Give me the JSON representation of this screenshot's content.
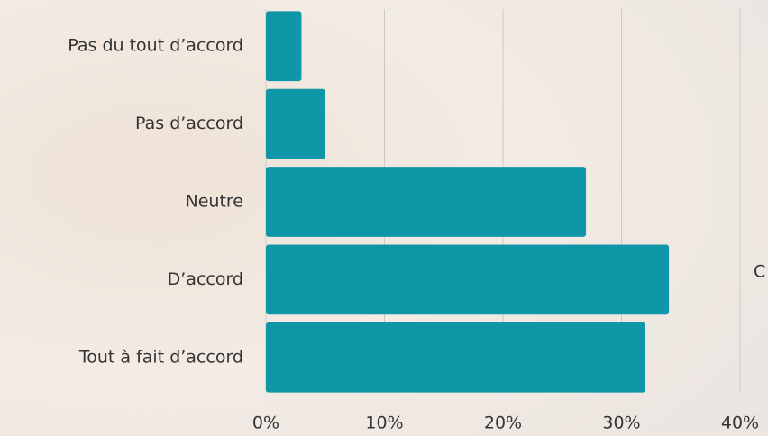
{
  "chart_data": {
    "type": "bar",
    "orientation": "horizontal",
    "categories": [
      "Pas du tout d’accord",
      "Pas d’accord",
      "Neutre",
      "D’accord",
      "Tout à fait d’accord"
    ],
    "values": [
      3,
      5,
      27,
      34,
      32
    ],
    "color": "#0f97a8",
    "xlim": [
      0,
      40
    ],
    "xticks": [
      {
        "value": 0,
        "label": "0%"
      },
      {
        "value": 10,
        "label": "10%"
      },
      {
        "value": 20,
        "label": "20%"
      },
      {
        "value": 30,
        "label": "30%"
      },
      {
        "value": 40,
        "label": "40%"
      }
    ],
    "grid": true,
    "annotation": "C"
  }
}
